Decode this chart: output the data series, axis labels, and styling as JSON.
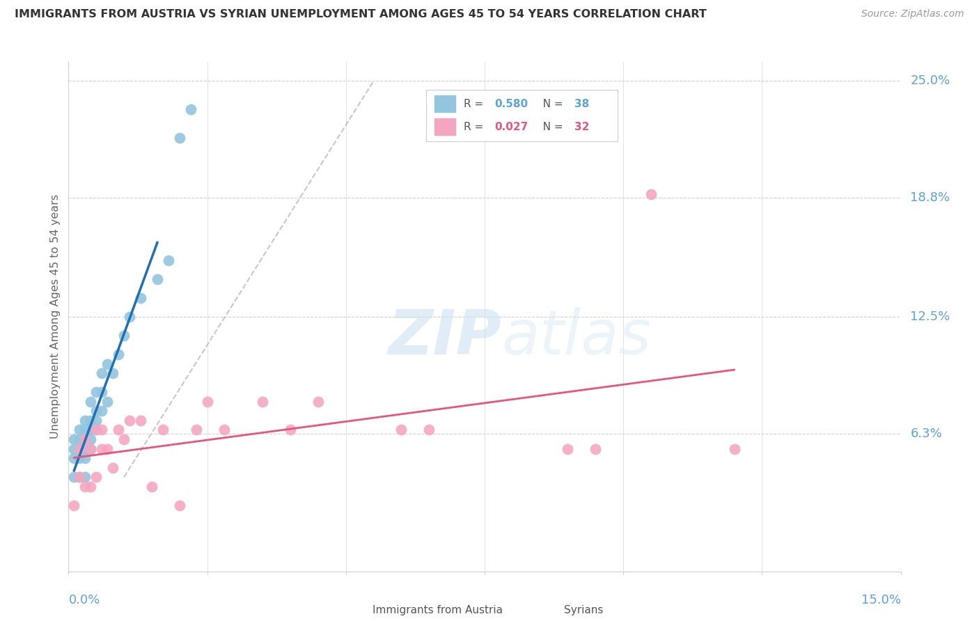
{
  "title": "IMMIGRANTS FROM AUSTRIA VS SYRIAN UNEMPLOYMENT AMONG AGES 45 TO 54 YEARS CORRELATION CHART",
  "source": "Source: ZipAtlas.com",
  "ylabel": "Unemployment Among Ages 45 to 54 years",
  "watermark_zip": "ZIP",
  "watermark_atlas": "atlas",
  "xlim": [
    0.0,
    0.15
  ],
  "ylim": [
    -0.01,
    0.26
  ],
  "yticks_right": [
    0.063,
    0.125,
    0.188,
    0.25
  ],
  "ytickslabels_right": [
    "6.3%",
    "12.5%",
    "18.8%",
    "25.0%"
  ],
  "xticks": [
    0.0,
    0.025,
    0.05,
    0.075,
    0.1,
    0.125,
    0.15
  ],
  "color_blue": "#92c5de",
  "color_pink": "#f4a6c0",
  "color_blue_line": "#1f6fb5",
  "color_pink_line": "#e8547a",
  "color_label": "#5ba3d9",
  "color_grid": "#d0d0d0",
  "color_dash": "#b0b0b0",
  "austria_x": [
    0.001,
    0.001,
    0.001,
    0.001,
    0.002,
    0.002,
    0.002,
    0.002,
    0.002,
    0.003,
    0.003,
    0.003,
    0.003,
    0.003,
    0.003,
    0.004,
    0.004,
    0.004,
    0.004,
    0.004,
    0.005,
    0.005,
    0.005,
    0.005,
    0.006,
    0.006,
    0.006,
    0.007,
    0.007,
    0.008,
    0.009,
    0.01,
    0.011,
    0.013,
    0.016,
    0.018,
    0.02,
    0.022
  ],
  "austria_y": [
    0.04,
    0.05,
    0.055,
    0.06,
    0.04,
    0.05,
    0.055,
    0.06,
    0.065,
    0.04,
    0.05,
    0.055,
    0.06,
    0.065,
    0.07,
    0.055,
    0.06,
    0.065,
    0.07,
    0.08,
    0.065,
    0.07,
    0.075,
    0.085,
    0.075,
    0.085,
    0.095,
    0.08,
    0.1,
    0.095,
    0.105,
    0.115,
    0.125,
    0.135,
    0.145,
    0.155,
    0.22,
    0.235
  ],
  "syrian_x": [
    0.001,
    0.002,
    0.002,
    0.003,
    0.003,
    0.004,
    0.004,
    0.005,
    0.005,
    0.006,
    0.006,
    0.007,
    0.008,
    0.009,
    0.01,
    0.011,
    0.013,
    0.015,
    0.017,
    0.02,
    0.023,
    0.025,
    0.028,
    0.035,
    0.04,
    0.045,
    0.06,
    0.065,
    0.09,
    0.095,
    0.105,
    0.12
  ],
  "syrian_y": [
    0.025,
    0.04,
    0.055,
    0.035,
    0.06,
    0.035,
    0.055,
    0.04,
    0.065,
    0.055,
    0.065,
    0.055,
    0.045,
    0.065,
    0.06,
    0.07,
    0.07,
    0.035,
    0.065,
    0.025,
    0.065,
    0.08,
    0.065,
    0.08,
    0.065,
    0.08,
    0.065,
    0.065,
    0.055,
    0.055,
    0.19,
    0.055
  ]
}
